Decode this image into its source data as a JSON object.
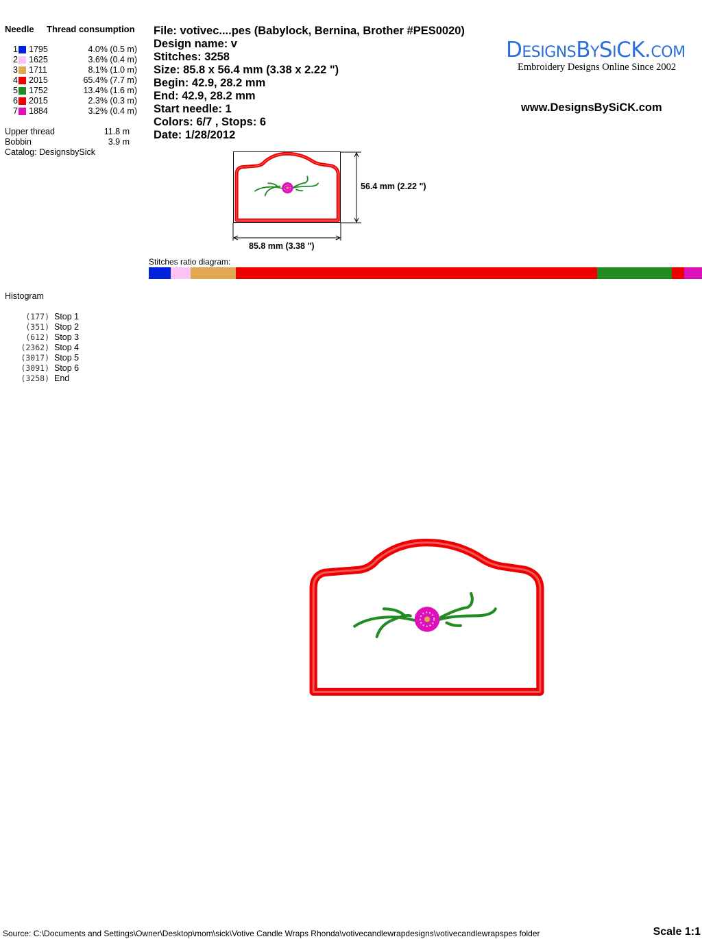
{
  "thread_table": {
    "header_needle": "Needle",
    "header_consumption": "Thread consumption",
    "rows": [
      {
        "needle": "1",
        "color": "#0022dd",
        "code": "1795",
        "consumption": "4.0% (0.5 m)",
        "percent": 4.0
      },
      {
        "needle": "2",
        "color": "#fcc4f4",
        "code": "1625",
        "consumption": "3.6% (0.4 m)",
        "percent": 3.6
      },
      {
        "needle": "3",
        "color": "#e0a850",
        "code": "1711",
        "consumption": "8.1% (1.0 m)",
        "percent": 8.1
      },
      {
        "needle": "4",
        "color": "#ee0000",
        "code": "2015",
        "consumption": "65.4% (7.7 m)",
        "percent": 65.4
      },
      {
        "needle": "5",
        "color": "#228b22",
        "code": "1752",
        "consumption": "13.4% (1.6 m)",
        "percent": 13.4
      },
      {
        "needle": "6",
        "color": "#ee0000",
        "code": "2015",
        "consumption": "2.3% (0.3 m)",
        "percent": 2.3
      },
      {
        "needle": "7",
        "color": "#dd11bb",
        "code": "1884",
        "consumption": "3.2% (0.4 m)",
        "percent": 3.2
      }
    ],
    "upper_thread_label": "Upper thread",
    "upper_thread_value": "11.8 m",
    "bobbin_label": "Bobbin",
    "bobbin_value": "3.9 m",
    "catalog": "Catalog: DesignsbySick"
  },
  "info": {
    "file": "File: votivec....pes  (Babylock, Bernina, Brother #PES0020)",
    "design_name": "Design name: v",
    "stitches": "Stitches: 3258",
    "size": "Size: 85.8 x 56.4 mm (3.38 x 2.22 \")",
    "begin": "Begin: 42.9, 28.2 mm",
    "end": "End: 42.9, 28.2 mm",
    "start_needle": "Start needle: 1",
    "colors_stops": "Colors: 6/7 , Stops: 6",
    "date": "Date: 1/28/2012"
  },
  "logo": {
    "title": "DesignsBySiCK.com",
    "tagline": "Embroidery Designs Online Since 2002",
    "color": "#2a6fd6"
  },
  "website": "www.DesignsBySiCK.com",
  "preview": {
    "height_label": "56.4 mm (2.22 \")",
    "width_label": "85.8 mm (3.38 \")"
  },
  "ratio_label": "Stitches ratio diagram:",
  "histogram": {
    "title": "Histogram",
    "items": [
      {
        "count": "(177)",
        "label": "Stop 1"
      },
      {
        "count": "(351)",
        "label": "Stop 2"
      },
      {
        "count": "(612)",
        "label": "Stop 3"
      },
      {
        "count": "(2362)",
        "label": "Stop 4"
      },
      {
        "count": "(3017)",
        "label": "Stop 5"
      },
      {
        "count": "(3091)",
        "label": "Stop 6"
      },
      {
        "count": "(3258)",
        "label": "End"
      }
    ]
  },
  "footer": {
    "source": "Source: C:\\Documents and Settings\\Owner\\Desktop\\mom\\sick\\Votive Candle Wraps Rhonda\\votivecandlewrapdesigns\\votivecandlewrapspes folder",
    "scale": "Scale 1:1"
  }
}
